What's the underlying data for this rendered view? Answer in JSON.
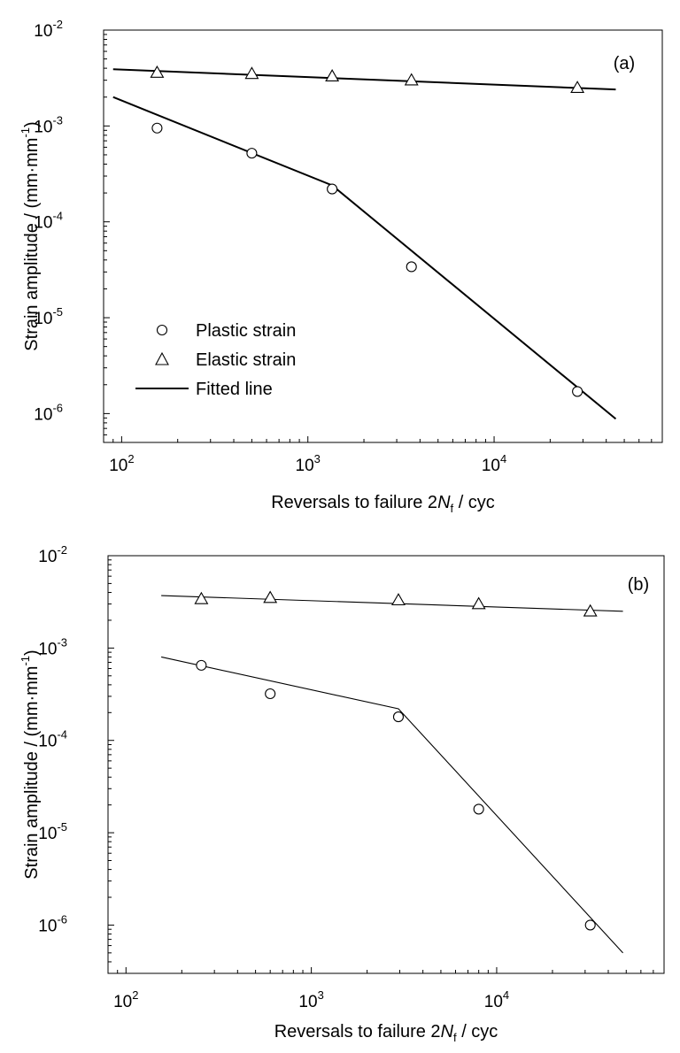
{
  "chart_data": [
    {
      "type": "scatter",
      "panel_label": "(a)",
      "xscale": "log",
      "yscale": "log",
      "xlim": [
        80,
        80000
      ],
      "ylim": [
        5e-07,
        0.01
      ],
      "xticks": [
        100,
        1000,
        10000
      ],
      "xtick_mantissa": "10",
      "xtick_exponents": [
        "2",
        "3",
        "4"
      ],
      "yticks": [
        1e-06,
        1e-05,
        0.0001,
        0.001,
        0.01
      ],
      "ytick_mantissa": "10",
      "ytick_exponents": [
        "-6",
        "-5",
        "-4",
        "-3",
        "-2"
      ],
      "xlabel_parts": [
        "Reversals to failure 2",
        "N",
        "f",
        " / cyc"
      ],
      "ylabel_parts": [
        "Strain amplitude / (mm·mm",
        "-1",
        ")"
      ],
      "series": [
        {
          "name": "Plastic strain",
          "marker": "circle",
          "x": [
            155,
            500,
            1350,
            3600,
            28000
          ],
          "y": [
            0.00095,
            0.00052,
            0.00022,
            3.4e-05,
            1.7e-06
          ]
        },
        {
          "name": "Elastic strain",
          "marker": "triangle",
          "x": [
            155,
            500,
            1350,
            3600,
            28000
          ],
          "y": [
            0.0036,
            0.0035,
            0.0033,
            0.003,
            0.0025
          ]
        }
      ],
      "fitted_lines": [
        {
          "role": "plastic",
          "x": [
            90,
            1350,
            45000
          ],
          "y": [
            0.002,
            0.00024,
            8.8e-07
          ]
        },
        {
          "role": "elastic",
          "x": [
            90,
            45000
          ],
          "y": [
            0.0039,
            0.0024
          ]
        }
      ],
      "legend": {
        "placement": "lower-left",
        "entries": [
          {
            "label": "Plastic strain",
            "marker": "circle"
          },
          {
            "label": "Elastic strain",
            "marker": "triangle"
          },
          {
            "label": "Fitted line",
            "marker": "line"
          }
        ]
      },
      "line_weight": "thick",
      "grid": false
    },
    {
      "type": "scatter",
      "panel_label": "(b)",
      "xscale": "log",
      "yscale": "log",
      "xlim": [
        80,
        80000
      ],
      "ylim": [
        3e-07,
        0.01
      ],
      "xticks": [
        100,
        1000,
        10000
      ],
      "xtick_mantissa": "10",
      "xtick_exponents": [
        "2",
        "3",
        "4"
      ],
      "yticks": [
        1e-06,
        1e-05,
        0.0001,
        0.001,
        0.01
      ],
      "ytick_mantissa": "10",
      "ytick_exponents": [
        "-6",
        "-5",
        "-4",
        "-3",
        "-2"
      ],
      "xlabel_parts": [
        "Reversals to failure 2",
        "N",
        "f",
        " / cyc"
      ],
      "ylabel_parts": [
        "Strain amplitude / (mm·mm",
        "-1",
        ")"
      ],
      "series": [
        {
          "name": "Plastic strain",
          "marker": "circle",
          "x": [
            255,
            600,
            2950,
            8000,
            32000
          ],
          "y": [
            0.00065,
            0.00032,
            0.00018,
            1.8e-05,
            1e-06
          ]
        },
        {
          "name": "Elastic strain",
          "marker": "triangle",
          "x": [
            255,
            600,
            2950,
            8000,
            32000
          ],
          "y": [
            0.0034,
            0.0035,
            0.0033,
            0.003,
            0.0025
          ]
        }
      ],
      "fitted_lines": [
        {
          "role": "plastic",
          "x": [
            155,
            2950,
            48000
          ],
          "y": [
            0.0008,
            0.00022,
            5e-07
          ]
        },
        {
          "role": "elastic",
          "x": [
            155,
            48000
          ],
          "y": [
            0.0037,
            0.0025
          ]
        }
      ],
      "line_weight": "thin",
      "grid": false
    }
  ]
}
